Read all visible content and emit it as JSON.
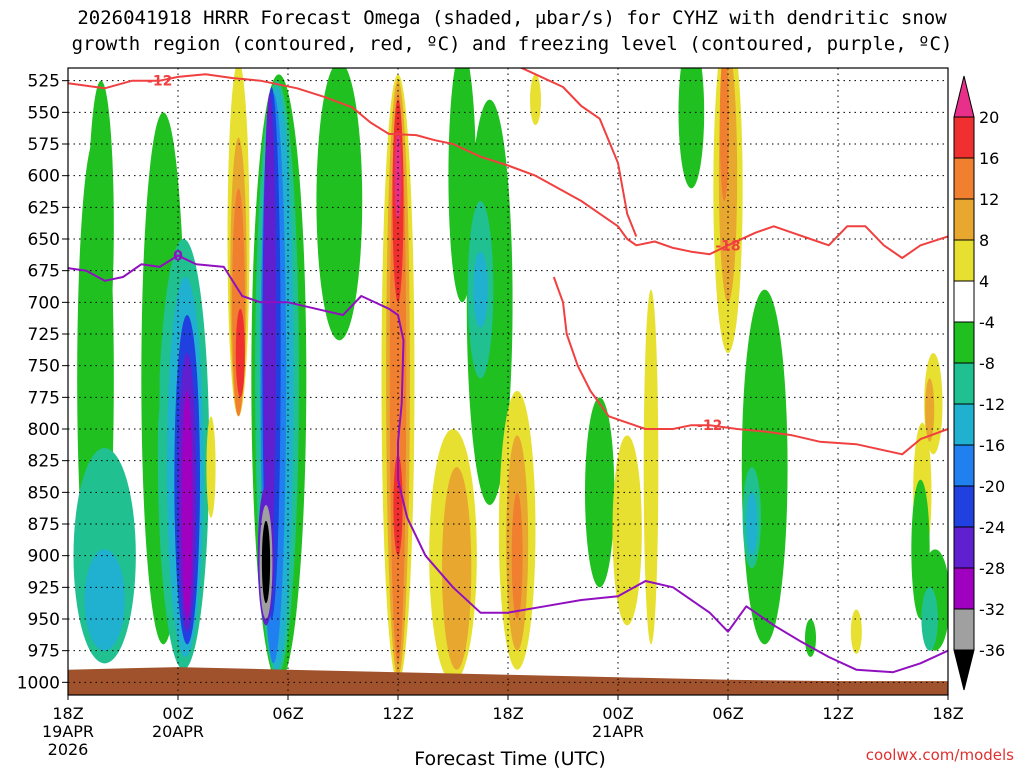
{
  "title_line1": "2026041918 HRRR Forecast Omega (shaded, μbar/s) for CYHZ with dendritic snow",
  "title_line2": "growth region (contoured, red, ºC) and freezing level (contoured, purple, ºC)",
  "xlabel": "Forecast Time (UTC)",
  "credit": "coolwx.com/models",
  "chart_data": {
    "type": "heatmap",
    "title": "2026041918 HRRR Forecast Omega (shaded, μbar/s) for CYHZ with dendritic snow growth region (contoured, red, ºC) and freezing level (contoured, purple, ºC)",
    "xlabel": "Forecast Time (UTC)",
    "ylabel": "",
    "x_range_hours": [
      0,
      48
    ],
    "y_levels_hpa": [
      525,
      550,
      575,
      600,
      625,
      650,
      675,
      700,
      725,
      750,
      775,
      800,
      825,
      850,
      875,
      900,
      925,
      950,
      975,
      1000
    ],
    "ylim_hpa": [
      515,
      1010
    ],
    "x_ticks": [
      {
        "h": 0,
        "label": "18Z",
        "sub1": "19APR",
        "sub2": "2026"
      },
      {
        "h": 6,
        "label": "00Z",
        "sub1": "20APR",
        "sub2": ""
      },
      {
        "h": 12,
        "label": "06Z",
        "sub1": "",
        "sub2": ""
      },
      {
        "h": 18,
        "label": "12Z",
        "sub1": "",
        "sub2": ""
      },
      {
        "h": 24,
        "label": "18Z",
        "sub1": "",
        "sub2": ""
      },
      {
        "h": 30,
        "label": "00Z",
        "sub1": "21APR",
        "sub2": ""
      },
      {
        "h": 36,
        "label": "06Z",
        "sub1": "",
        "sub2": ""
      },
      {
        "h": 42,
        "label": "12Z",
        "sub1": "",
        "sub2": ""
      },
      {
        "h": 48,
        "label": "18Z",
        "sub1": "",
        "sub2": ""
      }
    ],
    "colorbar": {
      "labels": [
        "20",
        "16",
        "12",
        "8",
        "4",
        "-4",
        "-8",
        "-12",
        "-16",
        "-20",
        "-24",
        "-28",
        "-32",
        "-36"
      ],
      "bins": [
        {
          "range": "16 to 20",
          "color": "#f03030"
        },
        {
          "range": "12 to 16",
          "color": "#f08030"
        },
        {
          "range": "8 to 12",
          "color": "#e8a830"
        },
        {
          "range": "4 to 8",
          "color": "#e8e030"
        },
        {
          "range": "-4 to 4",
          "color": "#ffffff"
        },
        {
          "range": "-8 to -4",
          "color": "#20c020"
        },
        {
          "range": "-12 to -8",
          "color": "#20c090"
        },
        {
          "range": "-16 to -12",
          "color": "#20b0d0"
        },
        {
          "range": "-20 to -16",
          "color": "#2080f0"
        },
        {
          "range": "-24 to -20",
          "color": "#2040e0"
        },
        {
          "range": "-28 to -24",
          "color": "#6020d0"
        },
        {
          "range": "-32 to -28",
          "color": "#a000c0"
        },
        {
          "range": "-36 to -32",
          "color": "#a0a0a0"
        }
      ],
      "top_extend_color": "#e8308a",
      "bottom_extend_color": "#000000"
    },
    "omega_regions": [
      {
        "h": 1.5,
        "p": 760,
        "wh": 2.0,
        "hp": 380,
        "color": "#20c020"
      },
      {
        "h": 2.0,
        "p": 900,
        "wh": 3.4,
        "hp": 170,
        "color": "#20c090"
      },
      {
        "h": 2.0,
        "p": 935,
        "wh": 2.2,
        "hp": 80,
        "color": "#20b0d0"
      },
      {
        "h": 5.2,
        "p": 760,
        "wh": 2.4,
        "hp": 420,
        "color": "#20c020"
      },
      {
        "h": 6.3,
        "p": 820,
        "wh": 2.8,
        "hp": 340,
        "color": "#20c090"
      },
      {
        "h": 6.4,
        "p": 830,
        "wh": 2.0,
        "hp": 300,
        "color": "#20b0d0"
      },
      {
        "h": 6.5,
        "p": 840,
        "wh": 1.4,
        "hp": 260,
        "color": "#2040e0"
      },
      {
        "h": 6.5,
        "p": 850,
        "wh": 1.0,
        "hp": 220,
        "color": "#6020d0"
      },
      {
        "h": 6.5,
        "p": 860,
        "wh": 0.6,
        "hp": 180,
        "color": "#a000c0"
      },
      {
        "h": 1.8,
        "p": 640,
        "wh": 1.4,
        "hp": 230,
        "color": "#20c020"
      },
      {
        "h": 9.3,
        "p": 650,
        "wh": 1.2,
        "hp": 280,
        "color": "#e8e030"
      },
      {
        "h": 9.3,
        "p": 680,
        "wh": 0.9,
        "hp": 220,
        "color": "#e8a830"
      },
      {
        "h": 9.3,
        "p": 700,
        "wh": 0.7,
        "hp": 180,
        "color": "#f08030"
      },
      {
        "h": 9.4,
        "p": 740,
        "wh": 0.5,
        "hp": 70,
        "color": "#f03030"
      },
      {
        "h": 11.5,
        "p": 760,
        "wh": 3.0,
        "hp": 480,
        "color": "#20c020"
      },
      {
        "h": 11.4,
        "p": 760,
        "wh": 2.4,
        "hp": 470,
        "color": "#20c090"
      },
      {
        "h": 11.4,
        "p": 760,
        "wh": 1.8,
        "hp": 460,
        "color": "#20b0d0"
      },
      {
        "h": 11.2,
        "p": 760,
        "wh": 1.4,
        "hp": 450,
        "color": "#2080f0"
      },
      {
        "h": 11.1,
        "p": 740,
        "wh": 1.0,
        "hp": 420,
        "color": "#2040e0"
      },
      {
        "h": 11.0,
        "p": 720,
        "wh": 0.7,
        "hp": 370,
        "color": "#6020d0"
      },
      {
        "h": 10.8,
        "p": 900,
        "wh": 0.9,
        "hp": 110,
        "color": "#6020d0"
      },
      {
        "h": 10.8,
        "p": 905,
        "wh": 0.7,
        "hp": 90,
        "color": "#a0a0a0"
      },
      {
        "h": 10.8,
        "p": 905,
        "wh": 0.45,
        "hp": 65,
        "color": "#000000"
      },
      {
        "h": 14.8,
        "p": 620,
        "wh": 2.5,
        "hp": 220,
        "color": "#20c020"
      },
      {
        "h": 18.0,
        "p": 760,
        "wh": 1.8,
        "hp": 480,
        "color": "#e8e030"
      },
      {
        "h": 18.0,
        "p": 760,
        "wh": 1.3,
        "hp": 470,
        "color": "#e8a830"
      },
      {
        "h": 18.0,
        "p": 760,
        "wh": 0.9,
        "hp": 450,
        "color": "#f08030"
      },
      {
        "h": 18.0,
        "p": 620,
        "wh": 0.6,
        "hp": 160,
        "color": "#f03030"
      },
      {
        "h": 18.0,
        "p": 600,
        "wh": 0.35,
        "hp": 70,
        "color": "#e8308a"
      },
      {
        "h": 18.0,
        "p": 860,
        "wh": 0.5,
        "hp": 80,
        "color": "#f03030"
      },
      {
        "h": 21.5,
        "p": 600,
        "wh": 1.5,
        "hp": 200,
        "color": "#20c020"
      },
      {
        "h": 23.0,
        "p": 700,
        "wh": 2.5,
        "hp": 320,
        "color": "#20c020"
      },
      {
        "h": 22.5,
        "p": 690,
        "wh": 1.4,
        "hp": 140,
        "color": "#20c090"
      },
      {
        "h": 22.5,
        "p": 690,
        "wh": 0.8,
        "hp": 60,
        "color": "#20b0d0"
      },
      {
        "h": 21.0,
        "p": 900,
        "wh": 2.6,
        "hp": 200,
        "color": "#e8e030"
      },
      {
        "h": 21.2,
        "p": 910,
        "wh": 1.6,
        "hp": 160,
        "color": "#e8a830"
      },
      {
        "h": 24.5,
        "p": 880,
        "wh": 2.0,
        "hp": 220,
        "color": "#e8e030"
      },
      {
        "h": 24.5,
        "p": 890,
        "wh": 1.2,
        "hp": 170,
        "color": "#e8a830"
      },
      {
        "h": 24.5,
        "p": 900,
        "wh": 0.6,
        "hp": 100,
        "color": "#f08030"
      },
      {
        "h": 29.0,
        "p": 850,
        "wh": 1.6,
        "hp": 150,
        "color": "#20c020"
      },
      {
        "h": 30.5,
        "p": 880,
        "wh": 1.6,
        "hp": 150,
        "color": "#e8e030"
      },
      {
        "h": 31.8,
        "p": 830,
        "wh": 0.8,
        "hp": 280,
        "color": "#e8e030"
      },
      {
        "h": 34.0,
        "p": 550,
        "wh": 1.4,
        "hp": 120,
        "color": "#20c020"
      },
      {
        "h": 36.0,
        "p": 610,
        "wh": 1.6,
        "hp": 260,
        "color": "#e8e030"
      },
      {
        "h": 36.0,
        "p": 600,
        "wh": 1.0,
        "hp": 200,
        "color": "#e8a830"
      },
      {
        "h": 35.8,
        "p": 560,
        "wh": 0.5,
        "hp": 120,
        "color": "#f08030"
      },
      {
        "h": 38.0,
        "p": 830,
        "wh": 2.5,
        "hp": 280,
        "color": "#20c020"
      },
      {
        "h": 37.3,
        "p": 870,
        "wh": 1.0,
        "hp": 80,
        "color": "#20c090"
      },
      {
        "h": 37.3,
        "p": 875,
        "wh": 0.6,
        "hp": 50,
        "color": "#20b0d0"
      },
      {
        "h": 25.5,
        "p": 540,
        "wh": 0.6,
        "hp": 40,
        "color": "#e8e030"
      },
      {
        "h": 46.6,
        "p": 850,
        "wh": 1.0,
        "hp": 110,
        "color": "#e8e030"
      },
      {
        "h": 47.2,
        "p": 780,
        "wh": 1.0,
        "hp": 80,
        "color": "#e8e030"
      },
      {
        "h": 47.0,
        "p": 785,
        "wh": 0.5,
        "hp": 50,
        "color": "#e8a830"
      },
      {
        "h": 47.3,
        "p": 935,
        "wh": 1.6,
        "hp": 80,
        "color": "#20c020"
      },
      {
        "h": 46.5,
        "p": 895,
        "wh": 1.0,
        "hp": 110,
        "color": "#20c020"
      },
      {
        "h": 47.0,
        "p": 950,
        "wh": 0.9,
        "hp": 50,
        "color": "#20c090"
      },
      {
        "h": 40.5,
        "p": 965,
        "wh": 0.6,
        "hp": 30,
        "color": "#20c020"
      },
      {
        "h": 43.0,
        "p": 960,
        "wh": 0.6,
        "hp": 35,
        "color": "#e8e030"
      },
      {
        "h": 4.8,
        "p": 770,
        "wh": 0.4,
        "hp": 60,
        "color": "#20c020"
      },
      {
        "h": 7.8,
        "p": 830,
        "wh": 0.5,
        "hp": 80,
        "color": "#e8e030"
      }
    ],
    "red_contours": [
      {
        "label": "-12",
        "points": [
          [
            0,
            527
          ],
          [
            2,
            531
          ],
          [
            3.5,
            525
          ],
          [
            5,
            525
          ],
          [
            6,
            522
          ],
          [
            7.5,
            520
          ],
          [
            9,
            523
          ],
          [
            10.5,
            525
          ],
          [
            12.5,
            531
          ],
          [
            14,
            538
          ],
          [
            15.5,
            546
          ],
          [
            16.5,
            558
          ],
          [
            17.5,
            567
          ],
          [
            19,
            568
          ],
          [
            20,
            572
          ],
          [
            21,
            575
          ],
          [
            22.5,
            585
          ],
          [
            24,
            592
          ],
          [
            25.5,
            600
          ],
          [
            27,
            612
          ],
          [
            28,
            620
          ],
          [
            29,
            630
          ],
          [
            30,
            640
          ],
          [
            30.5,
            650
          ],
          [
            31,
            655
          ],
          [
            32,
            652
          ],
          [
            33,
            657
          ],
          [
            34,
            660
          ],
          [
            35,
            662
          ],
          [
            36,
            655
          ]
        ]
      },
      {
        "label": "-18",
        "points": [
          [
            36,
            655
          ],
          [
            37.5,
            645
          ],
          [
            38.5,
            640
          ],
          [
            39.5,
            645
          ],
          [
            40.5,
            650
          ],
          [
            41.5,
            655
          ],
          [
            42.5,
            640
          ],
          [
            43.5,
            640
          ],
          [
            44.5,
            655
          ],
          [
            45.5,
            665
          ],
          [
            46.5,
            655
          ],
          [
            48,
            648
          ]
        ]
      },
      {
        "label": "",
        "points": [
          [
            24,
            510
          ],
          [
            25.5,
            520
          ],
          [
            27,
            530
          ],
          [
            28,
            545
          ],
          [
            29,
            555
          ],
          [
            30,
            590
          ],
          [
            30.5,
            630
          ],
          [
            31,
            648
          ]
        ]
      },
      {
        "label": "-12",
        "points": [
          [
            26.5,
            680
          ],
          [
            27,
            700
          ],
          [
            27.2,
            725
          ],
          [
            27.8,
            750
          ],
          [
            28.5,
            770
          ],
          [
            29.5,
            790
          ],
          [
            30.5,
            795
          ],
          [
            31.5,
            800
          ],
          [
            33,
            800
          ],
          [
            34,
            797
          ],
          [
            35,
            797
          ],
          [
            36.5,
            800
          ],
          [
            38,
            802
          ],
          [
            39.5,
            805
          ],
          [
            41,
            810
          ],
          [
            43,
            812
          ],
          [
            45.5,
            820
          ],
          [
            46.5,
            808
          ],
          [
            48,
            800
          ]
        ]
      }
    ],
    "purple_contour": {
      "label": "0",
      "points": [
        [
          0,
          673
        ],
        [
          1,
          675
        ],
        [
          2,
          683
        ],
        [
          3,
          680
        ],
        [
          4,
          670
        ],
        [
          5,
          672
        ],
        [
          6,
          663
        ],
        [
          7,
          670
        ],
        [
          8.5,
          672
        ],
        [
          9.5,
          695
        ],
        [
          10.5,
          700
        ],
        [
          12,
          700
        ],
        [
          13.5,
          705
        ],
        [
          15,
          710
        ],
        [
          16,
          695
        ],
        [
          17.5,
          705
        ],
        [
          18,
          710
        ],
        [
          18.3,
          730
        ],
        [
          18.2,
          780
        ],
        [
          18.0,
          810
        ],
        [
          18.0,
          840
        ],
        [
          18.5,
          870
        ],
        [
          19.5,
          900
        ],
        [
          21,
          925
        ],
        [
          22.5,
          945
        ],
        [
          24,
          945
        ],
        [
          26,
          940
        ],
        [
          28,
          935
        ],
        [
          30,
          932
        ],
        [
          31.5,
          920
        ],
        [
          33,
          925
        ],
        [
          35,
          945
        ],
        [
          36,
          960
        ],
        [
          37,
          940
        ],
        [
          38.5,
          955
        ],
        [
          40,
          968
        ],
        [
          41.5,
          980
        ],
        [
          43,
          990
        ],
        [
          45,
          992
        ],
        [
          46.5,
          985
        ],
        [
          48,
          975
        ]
      ]
    },
    "terrain_color": "#a0522d"
  }
}
